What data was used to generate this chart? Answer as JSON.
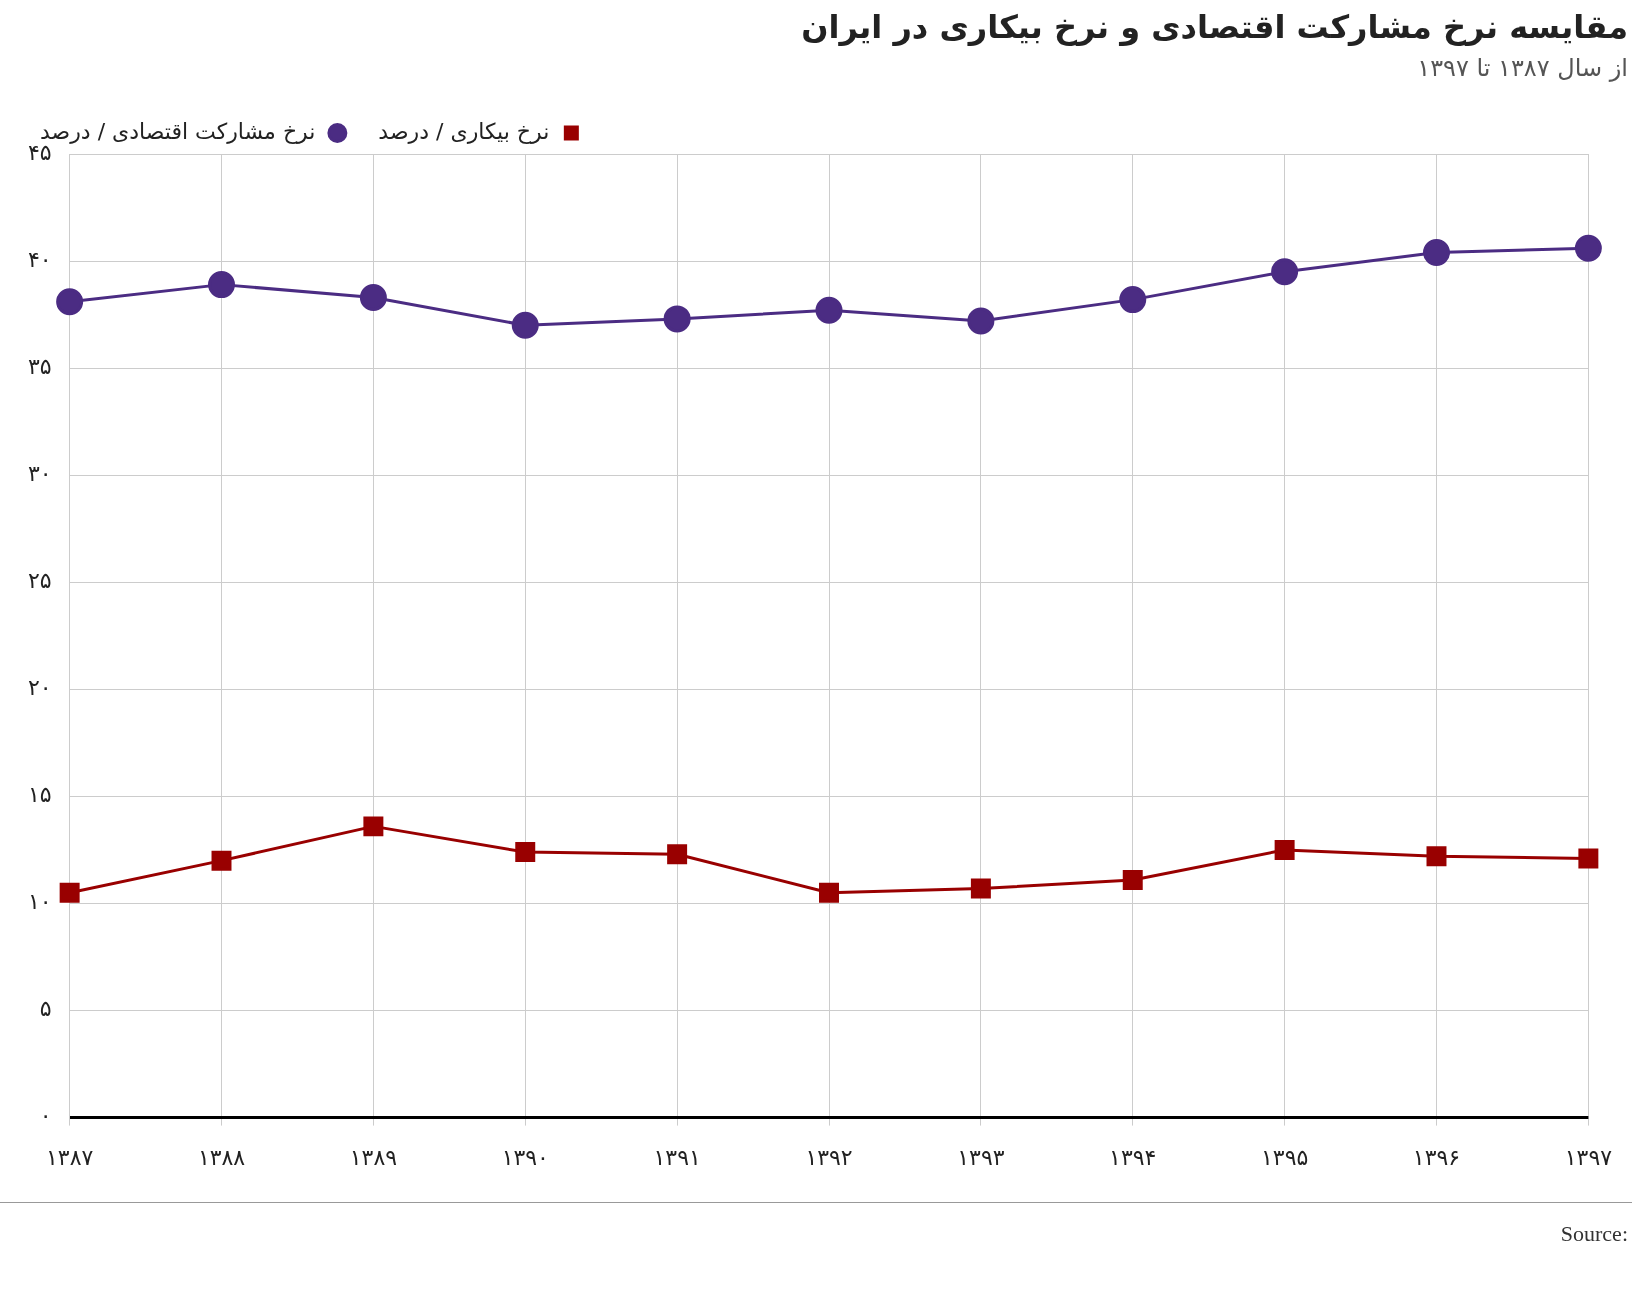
{
  "chart_data": {
    "type": "line",
    "title": "مقایسه نرخ مشارکت اقتصادی و نرخ بیکاری در ایران",
    "subtitle": "از سال ۱۳۸۷ تا ۱۳۹۷",
    "categories": [
      "۱۳۸۷",
      "۱۳۸۸",
      "۱۳۸۹",
      "۱۳۹۰",
      "۱۳۹۱",
      "۱۳۹۲",
      "۱۳۹۳",
      "۱۳۹۴",
      "۱۳۹۵",
      "۱۳۹۶",
      "۱۳۹۷"
    ],
    "series": [
      {
        "name": "نرخ بیکاری / درصد",
        "color": "#990000",
        "marker": "square",
        "values": [
          10.5,
          12.0,
          13.6,
          12.4,
          12.3,
          10.5,
          10.7,
          11.1,
          12.5,
          12.2,
          12.1
        ]
      },
      {
        "name": "نرخ مشارکت اقتصادی / درصد",
        "color": "#4b2c83",
        "marker": "circle",
        "values": [
          38.1,
          38.9,
          38.3,
          37.0,
          37.3,
          37.7,
          37.2,
          38.2,
          39.5,
          40.4,
          40.6
        ]
      }
    ],
    "ylim": [
      0,
      45
    ],
    "yticks": [
      {
        "value": 0,
        "label": "۰"
      },
      {
        "value": 5,
        "label": "۵"
      },
      {
        "value": 10,
        "label": "۱۰"
      },
      {
        "value": 15,
        "label": "۱۵"
      },
      {
        "value": 20,
        "label": "۲۰"
      },
      {
        "value": 25,
        "label": "۲۵"
      },
      {
        "value": 30,
        "label": "۳۰"
      },
      {
        "value": 35,
        "label": "۳۵"
      },
      {
        "value": 40,
        "label": "۴۰"
      },
      {
        "value": 45,
        "label": "۴۵"
      }
    ],
    "grid": true,
    "legend": "top left",
    "line_style": "solid",
    "annotations": [
      "Source:"
    ]
  }
}
